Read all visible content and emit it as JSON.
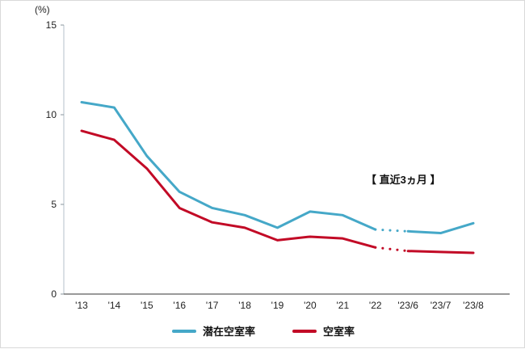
{
  "chart_data": {
    "type": "line",
    "title": "",
    "ylabel": "(%)",
    "ylim": [
      0,
      15
    ],
    "yticks": [
      0,
      5,
      10,
      15
    ],
    "grid": false,
    "legend_position": "bottom",
    "annotation": "【 直近3ヵ月 】",
    "categories": [
      "'13",
      "'14",
      "'15",
      "'16",
      "'17",
      "'18",
      "'19",
      "'20",
      "'21",
      "'22",
      "'23/6",
      "'23/7",
      "'23/8"
    ],
    "dotted_segment": [
      9,
      10
    ],
    "series": [
      {
        "name": "潜在空室率",
        "color": "#45a8c8",
        "values": [
          10.7,
          10.4,
          7.7,
          5.7,
          4.8,
          4.4,
          3.7,
          4.6,
          4.4,
          3.6,
          3.5,
          3.4,
          3.95
        ]
      },
      {
        "name": "空室率",
        "color": "#c20a26",
        "values": [
          9.1,
          8.6,
          7.0,
          4.8,
          4.0,
          3.7,
          3.0,
          3.2,
          3.1,
          2.6,
          2.4,
          2.35,
          2.3
        ]
      }
    ]
  }
}
